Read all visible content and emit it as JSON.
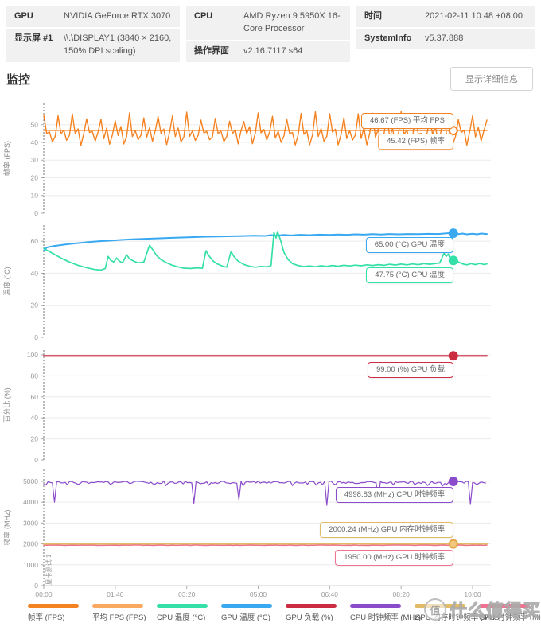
{
  "header": {
    "cols": [
      {
        "rows": [
          {
            "label": "GPU",
            "value": "NVIDIA GeForce RTX 3070"
          },
          {
            "label": "显示屏 #1",
            "value": "\\\\.\\DISPLAY1 (3840 × 2160, 150% DPI scaling)"
          }
        ]
      },
      {
        "rows": [
          {
            "label": "CPU",
            "value": "AMD Ryzen 9 5950X 16-Core Processor"
          },
          {
            "label": "操作界面",
            "value": "v2.16.7117 s64"
          }
        ]
      },
      {
        "rows": [
          {
            "label": "时间",
            "value": "2021-02-11 10:48 +08:00"
          },
          {
            "label": "SystemInfo",
            "value": "v5.37.888"
          }
        ]
      }
    ]
  },
  "monitor": {
    "title": "监控",
    "details_button": "显示详细信息"
  },
  "run_label": "显卡测试 1",
  "xaxis": {
    "ticks": [
      "00:00",
      "01:40",
      "03:20",
      "05:00",
      "06:40",
      "08:20",
      "10:00"
    ],
    "t_ticks": [
      0,
      100,
      200,
      300,
      400,
      500,
      600
    ],
    "t_max": 620
  },
  "legend": [
    {
      "label": "帧率 (FPS)",
      "color": "#f58220"
    },
    {
      "label": "平均 FPS (FPS)",
      "color": "#f9a860"
    },
    {
      "label": "CPU 温度 (°C)",
      "color": "#34dfa8"
    },
    {
      "label": "GPU 温度 (°C)",
      "color": "#38a8f0"
    },
    {
      "label": "GPU 负载 (%)",
      "color": "#cb2c41"
    },
    {
      "label": "CPU 时钟频率 (MHz)",
      "color": "#8b4ccc"
    },
    {
      "label": "GPU 内存时钟频率 (MHz)",
      "color": "#e2bb66"
    },
    {
      "label": "GPU 时钟频率 (MHz)",
      "color": "#ef7291"
    }
  ],
  "watermark": {
    "logo_char": "值",
    "text": "什么值得买"
  },
  "chart_data": [
    {
      "type": "line",
      "ylabel": "帧率 (FPS)",
      "ylim": [
        0,
        62
      ],
      "yticks": [
        0,
        10,
        20,
        30,
        40,
        50
      ],
      "series": [
        {
          "name": "平均 FPS (FPS)",
          "color": "#f9a860",
          "w": 1.6,
          "gen": "flat",
          "base": 46.67,
          "amp": 0,
          "step": 100,
          "seed": 1
        },
        {
          "name": "帧率 (FPS)",
          "color": "#f58220",
          "w": 1.4,
          "gen": "osc",
          "step": 4,
          "seed": 5,
          "pattern": [
            [
              51.5,
              57.5
            ],
            [
              42,
              46
            ],
            [
              45,
              49
            ],
            [
              38.3,
              41.5
            ],
            [
              43,
              47
            ]
          ]
        }
      ],
      "stats": {
        "avg_fps": 46.67,
        "fps": 45.42
      },
      "leaders": [
        {
          "t0": 448,
          "t1": 573,
          "v": 46.67,
          "color": "#f58220"
        }
      ],
      "markers": [
        {
          "t": 573,
          "v": 46.67,
          "color": "#f58220",
          "fill": "#fff"
        }
      ],
      "tooltips": [
        {
          "text": "46.67 (FPS) 平均 FPS",
          "color": "#f58220",
          "v": 46.67,
          "dy": -22
        },
        {
          "text": "45.42 (FPS) 帧率",
          "color": "#f9a860",
          "v": 46.67,
          "dy": 4
        }
      ]
    },
    {
      "type": "line",
      "ylabel": "温度 (°C)",
      "ylim": [
        0,
        70
      ],
      "yticks": [
        0,
        20,
        40,
        60
      ],
      "series": [
        {
          "name": "GPU 温度 (°C)",
          "color": "#38a8f0",
          "w": 2,
          "gen": "points",
          "points": [
            [
              0,
              54
            ],
            [
              4,
              56
            ],
            [
              8,
              56.5
            ],
            [
              14,
              57
            ],
            [
              22,
              57.5
            ],
            [
              30,
              58
            ],
            [
              40,
              58.5
            ],
            [
              52,
              59
            ],
            [
              64,
              59.5
            ],
            [
              78,
              60
            ],
            [
              92,
              60.3
            ],
            [
              108,
              60.8
            ],
            [
              124,
              61.2
            ],
            [
              142,
              61.5
            ],
            [
              162,
              61.8
            ],
            [
              184,
              62.2
            ],
            [
              206,
              62.5
            ],
            [
              228,
              62.8
            ],
            [
              250,
              63
            ],
            [
              272,
              63.2
            ],
            [
              294,
              63.4
            ],
            [
              310,
              63.3
            ],
            [
              318,
              63.8
            ],
            [
              326,
              63.5
            ],
            [
              336,
              63.9
            ],
            [
              346,
              63.6
            ],
            [
              358,
              64
            ],
            [
              372,
              63.8
            ],
            [
              386,
              64.1
            ],
            [
              400,
              63.9
            ],
            [
              412,
              64.2
            ],
            [
              424,
              64
            ],
            [
              436,
              64.3
            ],
            [
              448,
              64.1
            ],
            [
              460,
              64.4
            ],
            [
              472,
              64.2
            ],
            [
              484,
              64.5
            ],
            [
              496,
              64.3
            ],
            [
              510,
              64.5
            ],
            [
              524,
              64.4
            ],
            [
              538,
              64.6
            ],
            [
              552,
              64.5
            ],
            [
              565,
              65
            ],
            [
              573,
              65
            ],
            [
              580,
              64.4
            ],
            [
              586,
              64.8
            ],
            [
              592,
              64.3
            ],
            [
              600,
              64.7
            ],
            [
              606,
              64.3
            ],
            [
              612,
              64.8
            ],
            [
              620,
              64.5
            ]
          ]
        },
        {
          "name": "CPU 温度 (°C)",
          "color": "#34dfa8",
          "w": 1.7,
          "gen": "points",
          "points": [
            [
              0,
              55.5
            ],
            [
              6,
              54
            ],
            [
              14,
              52
            ],
            [
              24,
              49.5
            ],
            [
              36,
              47
            ],
            [
              48,
              45
            ],
            [
              60,
              43.5
            ],
            [
              72,
              42.3
            ],
            [
              80,
              42
            ],
            [
              86,
              43
            ],
            [
              90,
              50.5
            ],
            [
              94,
              48
            ],
            [
              98,
              47
            ],
            [
              102,
              49.5
            ],
            [
              106,
              47.5
            ],
            [
              110,
              46.5
            ],
            [
              116,
              51.5
            ],
            [
              120,
              49
            ],
            [
              126,
              47.5
            ],
            [
              132,
              46.5
            ],
            [
              140,
              47
            ],
            [
              148,
              57.5
            ],
            [
              152,
              55
            ],
            [
              158,
              51
            ],
            [
              164,
              48.5
            ],
            [
              172,
              46.5
            ],
            [
              180,
              45
            ],
            [
              188,
              44
            ],
            [
              196,
              43.2
            ],
            [
              206,
              43
            ],
            [
              214,
              43.4
            ],
            [
              222,
              43.1
            ],
            [
              227,
              54
            ],
            [
              231,
              51
            ],
            [
              236,
              48
            ],
            [
              242,
              46
            ],
            [
              250,
              44.5
            ],
            [
              256,
              43.8
            ],
            [
              262,
              53.5
            ],
            [
              266,
              50.5
            ],
            [
              272,
              47.5
            ],
            [
              280,
              45.5
            ],
            [
              288,
              44.4
            ],
            [
              296,
              43.8
            ],
            [
              304,
              44.3
            ],
            [
              312,
              44
            ],
            [
              318,
              44.8
            ],
            [
              322,
              65.5
            ],
            [
              325,
              62
            ],
            [
              327,
              66
            ],
            [
              331,
              61
            ],
            [
              336,
              53
            ],
            [
              342,
              48.5
            ],
            [
              348,
              46
            ],
            [
              356,
              44.8
            ],
            [
              364,
              44.2
            ],
            [
              372,
              44.6
            ],
            [
              380,
              44.1
            ],
            [
              388,
              44.7
            ],
            [
              396,
              44.3
            ],
            [
              404,
              44.9
            ],
            [
              412,
              44.4
            ],
            [
              420,
              45
            ],
            [
              428,
              44.6
            ],
            [
              436,
              45.1
            ],
            [
              444,
              44.7
            ],
            [
              452,
              45.3
            ],
            [
              460,
              44.9
            ],
            [
              468,
              45.4
            ],
            [
              476,
              45
            ],
            [
              484,
              45.6
            ],
            [
              492,
              45.2
            ],
            [
              500,
              45.7
            ],
            [
              508,
              45.3
            ],
            [
              516,
              45.8
            ],
            [
              524,
              45.4
            ],
            [
              532,
              46
            ],
            [
              540,
              45.6
            ],
            [
              548,
              46.1
            ],
            [
              554,
              46.4
            ],
            [
              560,
              52.5
            ],
            [
              563,
              50.5
            ],
            [
              566,
              52
            ],
            [
              569,
              48.5
            ],
            [
              572,
              47.75
            ],
            [
              576,
              49.5
            ],
            [
              580,
              47
            ],
            [
              586,
              45.8
            ],
            [
              592,
              45.3
            ],
            [
              598,
              46
            ],
            [
              604,
              45.4
            ],
            [
              610,
              46.1
            ],
            [
              616,
              45.5
            ],
            [
              620,
              45.8
            ]
          ]
        }
      ],
      "stats": {
        "gpu_temp": 65.0,
        "cpu_temp": 47.75
      },
      "markers": [
        {
          "t": 573,
          "v": 65,
          "color": "#38a8f0"
        },
        {
          "t": 573,
          "v": 48,
          "color": "#34dfa8"
        }
      ],
      "tooltips": [
        {
          "text": "65.00 (°C) GPU 温度",
          "color": "#38a8f0",
          "v": 65,
          "dy": 5
        },
        {
          "text": "47.75 (°C) CPU 温度",
          "color": "#34dfa8",
          "v": 47.75,
          "dy": 8
        }
      ]
    },
    {
      "type": "line",
      "ylabel": "百分比 (%)",
      "ylim": [
        0,
        104.5
      ],
      "yticks": [
        0,
        20,
        40,
        60,
        80,
        100
      ],
      "series": [
        {
          "name": "GPU 负载 (%)",
          "color": "#cb2c41",
          "w": 2.2,
          "gen": "points",
          "points": [
            [
              0,
              99
            ],
            [
              620,
              99
            ]
          ]
        }
      ],
      "stats": {
        "gpu_load": 99.0
      },
      "markers": [
        {
          "t": 573,
          "v": 99,
          "color": "#cb2c41"
        }
      ],
      "tooltips": [
        {
          "text": "99.00 (%) GPU 负载",
          "color": "#cb2c41",
          "v": 99,
          "dy": 8
        }
      ]
    },
    {
      "type": "line",
      "ylabel": "频率 (MHz)",
      "ylim": [
        0,
        5570
      ],
      "yticks": [
        0,
        1000,
        2000,
        3000,
        4000,
        5000
      ],
      "series": [
        {
          "name": "CPU 时钟频率 (MHz)",
          "color": "#8b4ccc",
          "w": 1.2,
          "gen": "noisy",
          "base": 4950,
          "amp": 55,
          "step": 3,
          "seed": 3,
          "dips": [
            [
              15,
              4000
            ],
            [
              210,
              3950
            ],
            [
              273,
              4120
            ],
            [
              396,
              3850
            ],
            [
              468,
              4150
            ],
            [
              597,
              3890
            ]
          ]
        },
        {
          "name": "GPU 内存时钟频率 (MHz)",
          "color": "#e2bb66",
          "w": 2,
          "gen": "flat",
          "base": 2000,
          "amp": 7,
          "step": 6,
          "seed": 7
        },
        {
          "name": "GPU 时钟频率 (MHz)",
          "color": "#ef7291",
          "w": 1.4,
          "gen": "flat",
          "base": 1935,
          "amp": 10,
          "step": 5,
          "seed": 11
        }
      ],
      "stats": {
        "cpu_clock": 4998.83,
        "gpu_mem_clock": 2000.24,
        "gpu_clock": 1950.0
      },
      "markers": [
        {
          "t": 573,
          "v": 4998,
          "color": "#8b4ccc"
        },
        {
          "t": 573,
          "v": 2000,
          "color": "#e2a74a",
          "fill": "#f2c87e"
        }
      ],
      "tooltips": [
        {
          "text": "4998.83 (MHz) CPU 时钟频率",
          "color": "#8b4ccc",
          "v": 4998.83,
          "dy": 7
        },
        {
          "text": "2000.24 (MHz) GPU 内存时钟频率",
          "color": "#e2bb66",
          "v": 2000.24,
          "dy": -28
        },
        {
          "text": "1950.00 (MHz) GPU 时钟频率",
          "color": "#ef7291",
          "v": 1950,
          "dy": 6
        }
      ]
    }
  ]
}
